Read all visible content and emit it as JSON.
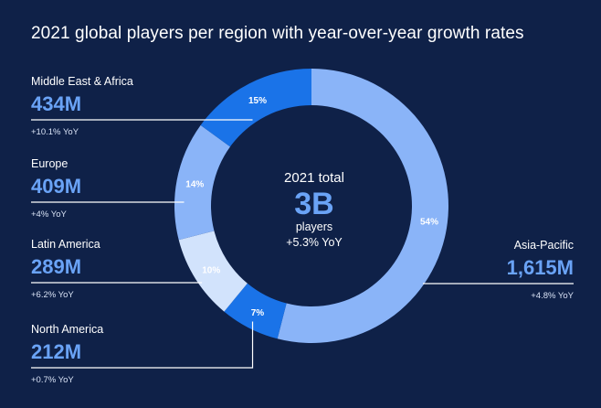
{
  "chart_data": {
    "type": "pie",
    "donut": true,
    "title": "2021 global players per region with year-over-year growth rates",
    "center": {
      "line1": "2021 total",
      "value": "3B",
      "line2": "players",
      "line3": "+5.3% YoY"
    },
    "slices": [
      {
        "name": "Asia-Pacific",
        "value_label": "1,615M",
        "value": 1615,
        "percent": 54,
        "percent_label": "54%",
        "yoy": "+4.8% YoY",
        "color": "#8ab4f8",
        "side": "right"
      },
      {
        "name": "North America",
        "value_label": "212M",
        "value": 212,
        "percent": 7,
        "percent_label": "7%",
        "yoy": "+0.7% YoY",
        "color": "#1a73e8",
        "side": "left"
      },
      {
        "name": "Latin America",
        "value_label": "289M",
        "value": 289,
        "percent": 10,
        "percent_label": "10%",
        "yoy": "+6.2% YoY",
        "color": "#d2e3fc",
        "side": "left"
      },
      {
        "name": "Europe",
        "value_label": "409M",
        "value": 409,
        "percent": 14,
        "percent_label": "14%",
        "yoy": "+4% YoY",
        "color": "#8ab4f8",
        "side": "left"
      },
      {
        "name": "Middle East & Africa",
        "value_label": "434M",
        "value": 434,
        "percent": 15,
        "percent_label": "15%",
        "yoy": "+10.1% YoY",
        "color": "#1a73e8",
        "side": "left"
      }
    ],
    "colors": {
      "background": "#0f2148",
      "leader": "#ffffff",
      "value_text": "#6aa3f6"
    }
  }
}
